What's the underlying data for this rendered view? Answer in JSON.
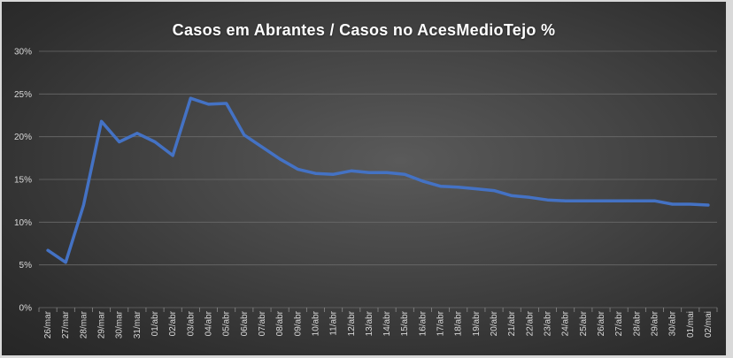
{
  "chart_data": {
    "type": "line",
    "title": "Casos em Abrantes / Casos no AcesMedioTejo %",
    "xlabel": "",
    "ylabel": "",
    "ylim": [
      0,
      30
    ],
    "yticks": [
      "0%",
      "5%",
      "10%",
      "15%",
      "20%",
      "25%",
      "30%"
    ],
    "grid": true,
    "legend": "none",
    "categories": [
      "26/mar",
      "27/mar",
      "28/mar",
      "29/mar",
      "30/mar",
      "31/mar",
      "01/abr",
      "02/abr",
      "03/abr",
      "04/abr",
      "05/abr",
      "06/abr",
      "07/abr",
      "08/abr",
      "09/abr",
      "10/abr",
      "11/abr",
      "12/abr",
      "13/abr",
      "14/abr",
      "15/abr",
      "16/abr",
      "17/abr",
      "18/abr",
      "19/abr",
      "20/abr",
      "21/abr",
      "22/abr",
      "23/abr",
      "24/abr",
      "25/abr",
      "26/abr",
      "27/abr",
      "28/abr",
      "29/abr",
      "30/abr",
      "01/mai",
      "02/mai"
    ],
    "series": [
      {
        "name": "",
        "color": "#4472c4",
        "values": [
          6.7,
          5.3,
          12.0,
          21.8,
          19.4,
          20.4,
          19.4,
          17.8,
          24.5,
          23.8,
          23.9,
          20.2,
          18.8,
          17.4,
          16.2,
          15.7,
          15.6,
          16.0,
          15.8,
          15.8,
          15.6,
          14.8,
          14.2,
          14.1,
          13.9,
          13.7,
          13.1,
          12.9,
          12.6,
          12.5,
          12.5,
          12.5,
          12.5,
          12.5,
          12.5,
          12.1,
          12.1,
          12.0
        ]
      }
    ]
  }
}
